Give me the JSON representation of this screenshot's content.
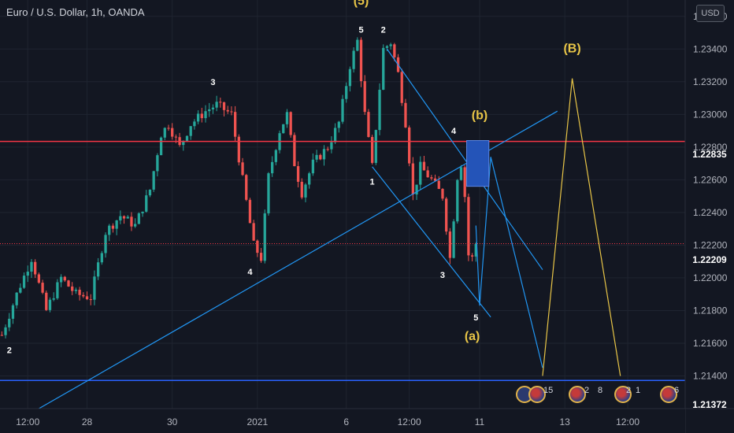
{
  "header": {
    "title": "Euro / U.S. Dollar, 1h, OANDA"
  },
  "currency_button": "USD",
  "price_tags": {
    "resistance": {
      "label": "1.22835",
      "color": "#f23645"
    },
    "last": {
      "label": "1.22209",
      "color": "#f23645"
    },
    "support": {
      "label": "1.21372",
      "color": "#2962ff"
    }
  },
  "event_counts": [
    "15",
    "2",
    "8",
    "2",
    "1",
    "6"
  ],
  "chart_data": {
    "type": "candlestick",
    "symbol": "EURUSD",
    "timeframe": "1h",
    "up_color": "#26a69a",
    "down_color": "#ef5350",
    "y_ticks": [
      "1.23600",
      "1.23400",
      "1.23200",
      "1.23000",
      "1.22800",
      "1.22600",
      "1.22400",
      "1.22200",
      "1.22000",
      "1.21800",
      "1.21600",
      "1.21400"
    ],
    "x_ticks": [
      "12:00",
      "28",
      "30",
      "2021",
      "6",
      "12:00",
      "11",
      "13",
      "12:00"
    ],
    "x_tick_bars": [
      7,
      23,
      46,
      69,
      93,
      110,
      129,
      152,
      169
    ],
    "ylim": [
      1.212,
      1.237
    ],
    "bars_total": 185,
    "price_path": [
      [
        0,
        1.2165
      ],
      [
        4,
        1.219
      ],
      [
        8,
        1.2212
      ],
      [
        12,
        1.218
      ],
      [
        16,
        1.22
      ],
      [
        20,
        1.219
      ],
      [
        24,
        1.2188
      ],
      [
        28,
        1.2228
      ],
      [
        32,
        1.2238
      ],
      [
        36,
        1.2232
      ],
      [
        40,
        1.2254
      ],
      [
        43,
        1.2288
      ],
      [
        45,
        1.2294
      ],
      [
        48,
        1.228
      ],
      [
        51,
        1.2294
      ],
      [
        55,
        1.2302
      ],
      [
        58,
        1.2306
      ],
      [
        62,
        1.23
      ],
      [
        65,
        1.226
      ],
      [
        68,
        1.222
      ],
      [
        70,
        1.2212
      ],
      [
        72,
        1.2262
      ],
      [
        75,
        1.229
      ],
      [
        77,
        1.23
      ],
      [
        79,
        1.227
      ],
      [
        81,
        1.2252
      ],
      [
        84,
        1.227
      ],
      [
        88,
        1.228
      ],
      [
        91,
        1.2295
      ],
      [
        94,
        1.233
      ],
      [
        96,
        1.2345
      ],
      [
        98,
        1.23
      ],
      [
        100,
        1.2268
      ],
      [
        103,
        1.234
      ],
      [
        105,
        1.2344
      ],
      [
        107,
        1.2325
      ],
      [
        109,
        1.2295
      ],
      [
        111,
        1.225
      ],
      [
        113,
        1.2268
      ],
      [
        116,
        1.226
      ],
      [
        119,
        1.225
      ],
      [
        121,
        1.2212
      ],
      [
        123,
        1.2262
      ],
      [
        124,
        1.227
      ],
      [
        125,
        1.225
      ],
      [
        126,
        1.2214
      ],
      [
        127,
        1.2212
      ],
      [
        128,
        1.2221
      ]
    ],
    "lines": [
      {
        "color": "#2196f3",
        "points": [
          [
            10,
            1.212
          ],
          [
            150,
            1.2302
          ]
        ]
      },
      {
        "color": "#2196f3",
        "points": [
          [
            104,
            1.234
          ],
          [
            146,
            1.2205
          ]
        ]
      },
      {
        "color": "#2196f3",
        "points": [
          [
            100,
            1.2268
          ],
          [
            132,
            1.2176
          ]
        ]
      },
      {
        "color": "#2196f3",
        "points": [
          [
            128,
            1.2232
          ],
          [
            129,
            1.2183
          ],
          [
            132,
            1.2274
          ],
          [
            146,
            1.2145
          ]
        ]
      },
      {
        "color": "#e8c547",
        "points": [
          [
            146,
            1.214
          ],
          [
            154,
            1.2322
          ],
          [
            167,
            1.214
          ]
        ]
      }
    ],
    "horizontal_lines": [
      {
        "price": 1.22835,
        "color": "#f23645",
        "style": "solid"
      },
      {
        "price": 1.22209,
        "color": "#f23645",
        "style": "dotted"
      },
      {
        "price": 1.21372,
        "color": "#2962ff",
        "style": "solid"
      }
    ],
    "box": {
      "x0": 125.5,
      "x1": 131.5,
      "y0": 1.2284,
      "y1": 1.2256,
      "color": "#2454b8"
    },
    "wave_labels": [
      {
        "text": "2",
        "bar": 2,
        "price": 1.2154,
        "color": "#ffffff"
      },
      {
        "text": "3",
        "bar": 57,
        "price": 1.2318,
        "color": "#ffffff"
      },
      {
        "text": "4",
        "bar": 67,
        "price": 1.2202,
        "color": "#ffffff"
      },
      {
        "text": "(5)",
        "bar": 97,
        "price": 1.2367,
        "color": "#e8c547"
      },
      {
        "text": "5",
        "bar": 97,
        "price": 1.235,
        "color": "#ffffff"
      },
      {
        "text": "2",
        "bar": 103,
        "price": 1.235,
        "color": "#ffffff"
      },
      {
        "text": "1",
        "bar": 100,
        "price": 1.2257,
        "color": "#ffffff"
      },
      {
        "text": "4",
        "bar": 122,
        "price": 1.2288,
        "color": "#ffffff"
      },
      {
        "text": "(b)",
        "bar": 129,
        "price": 1.2297,
        "color": "#e8c547"
      },
      {
        "text": "3",
        "bar": 119,
        "price": 1.22,
        "color": "#ffffff"
      },
      {
        "text": "5",
        "bar": 128,
        "price": 1.2174,
        "color": "#ffffff"
      },
      {
        "text": "(a)",
        "bar": 127,
        "price": 1.2162,
        "color": "#e8c547"
      },
      {
        "text": "(B)",
        "bar": 154,
        "price": 1.2338,
        "color": "#e8c547"
      }
    ]
  }
}
